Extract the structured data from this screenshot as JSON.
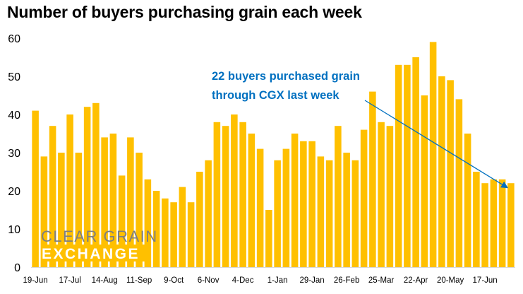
{
  "chart_data": {
    "type": "bar",
    "title": "Number of buyers purchasing grain each week",
    "xlabel": "",
    "ylabel": "",
    "ylim": [
      0,
      60
    ],
    "yticks": [
      0,
      10,
      20,
      30,
      40,
      50,
      60
    ],
    "grid": false,
    "bar_color": "#ffc000",
    "categories": [
      "19-Jun",
      "",
      "",
      "",
      "17-Jul",
      "",
      "",
      "",
      "14-Aug",
      "",
      "",
      "",
      "11-Sep",
      "",
      "",
      "",
      "9-Oct",
      "",
      "",
      "",
      "6-Nov",
      "",
      "",
      "",
      "4-Dec",
      "",
      "",
      "",
      "1-Jan",
      "",
      "",
      "",
      "29-Jan",
      "",
      "",
      "",
      "26-Feb",
      "",
      "",
      "",
      "25-Mar",
      "",
      "",
      "",
      "22-Apr",
      "",
      "",
      "",
      "20-May",
      "",
      "",
      "",
      "17-Jun",
      "",
      "",
      ""
    ],
    "values": [
      41,
      29,
      37,
      30,
      40,
      30,
      42,
      43,
      34,
      35,
      24,
      34,
      30,
      23,
      20,
      18,
      17,
      21,
      17,
      25,
      28,
      38,
      37,
      40,
      38,
      35,
      31,
      15,
      28,
      31,
      35,
      33,
      33,
      29,
      28,
      37,
      30,
      28,
      36,
      46,
      38,
      37,
      53,
      53,
      55,
      45,
      59,
      50,
      49,
      44,
      35,
      25,
      22,
      23,
      23,
      22
    ],
    "annotations": [
      {
        "text_lines": [
          "22 buyers purchased grain",
          "through CGX last week"
        ],
        "color": "#0070c0",
        "arrow_to_index": 55
      }
    ]
  },
  "logo": {
    "line1": "CLEAR GRAIN",
    "line2": "EXCHANGE",
    "text_color": "#7f7f7f",
    "accent_color": "#ffc000"
  }
}
